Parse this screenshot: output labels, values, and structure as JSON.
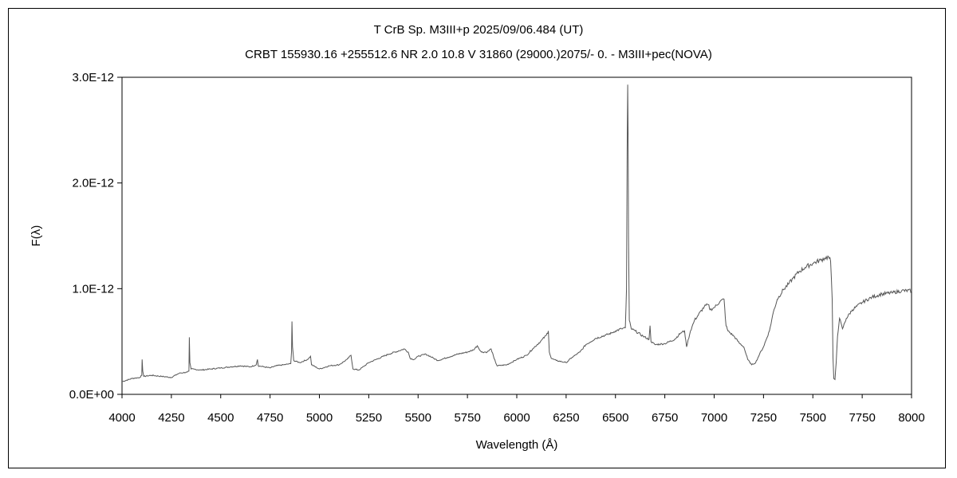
{
  "chart_data": {
    "type": "line",
    "title": "T CrB    Sp. M3III+p    2025/09/06.484 (UT)",
    "subtitle": "CRBT 155930.16 +255512.6  NR 2.0 10.8 V 31860 (29000.)2075/-  0. - M3III+pec(NOVA)",
    "xlabel": "Wavelength (Å)",
    "ylabel": "F(λ)",
    "xlim": [
      4000,
      8000
    ],
    "ylim": [
      0,
      3e-12
    ],
    "x_ticks": [
      4000,
      4250,
      4500,
      4750,
      5000,
      5250,
      5500,
      5750,
      6000,
      6250,
      6500,
      6750,
      7000,
      7250,
      7500,
      7750,
      8000
    ],
    "x_tick_labels": [
      "4000",
      "4250",
      "4500",
      "4750",
      "5000",
      "5250",
      "5500",
      "5750",
      "6000",
      "6250",
      "6500",
      "6750",
      "7000",
      "7250",
      "7500",
      "7750",
      "8000"
    ],
    "y_ticks": [
      0,
      1e-12,
      2e-12,
      3e-12
    ],
    "y_tick_labels": [
      "0.0E+00",
      "1.0E-12",
      "2.0E-12",
      "3.0E-12"
    ],
    "grid": false,
    "line_color": "#555555",
    "series": [
      {
        "values": [
          [
            4000,
            0.12
          ],
          [
            4050,
            0.15
          ],
          [
            4090,
            0.16
          ],
          [
            4100,
            0.18
          ],
          [
            4102,
            0.33
          ],
          [
            4105,
            0.22
          ],
          [
            4110,
            0.17
          ],
          [
            4150,
            0.18
          ],
          [
            4200,
            0.17
          ],
          [
            4250,
            0.16
          ],
          [
            4290,
            0.2
          ],
          [
            4330,
            0.21
          ],
          [
            4339,
            0.22
          ],
          [
            4341,
            0.54
          ],
          [
            4344,
            0.3
          ],
          [
            4350,
            0.24
          ],
          [
            4400,
            0.23
          ],
          [
            4450,
            0.24
          ],
          [
            4500,
            0.25
          ],
          [
            4550,
            0.26
          ],
          [
            4600,
            0.27
          ],
          [
            4650,
            0.26
          ],
          [
            4680,
            0.28
          ],
          [
            4686,
            0.33
          ],
          [
            4690,
            0.27
          ],
          [
            4720,
            0.26
          ],
          [
            4750,
            0.25
          ],
          [
            4780,
            0.27
          ],
          [
            4820,
            0.28
          ],
          [
            4855,
            0.29
          ],
          [
            4859,
            0.41
          ],
          [
            4861,
            0.69
          ],
          [
            4864,
            0.45
          ],
          [
            4870,
            0.32
          ],
          [
            4900,
            0.3
          ],
          [
            4940,
            0.33
          ],
          [
            4955,
            0.36
          ],
          [
            4960,
            0.28
          ],
          [
            5000,
            0.24
          ],
          [
            5050,
            0.27
          ],
          [
            5100,
            0.28
          ],
          [
            5140,
            0.33
          ],
          [
            5160,
            0.37
          ],
          [
            5170,
            0.24
          ],
          [
            5200,
            0.23
          ],
          [
            5250,
            0.3
          ],
          [
            5300,
            0.34
          ],
          [
            5350,
            0.38
          ],
          [
            5400,
            0.41
          ],
          [
            5430,
            0.43
          ],
          [
            5450,
            0.4
          ],
          [
            5460,
            0.34
          ],
          [
            5480,
            0.33
          ],
          [
            5500,
            0.36
          ],
          [
            5540,
            0.38
          ],
          [
            5580,
            0.34
          ],
          [
            5600,
            0.32
          ],
          [
            5650,
            0.35
          ],
          [
            5700,
            0.38
          ],
          [
            5750,
            0.4
          ],
          [
            5780,
            0.42
          ],
          [
            5800,
            0.46
          ],
          [
            5820,
            0.4
          ],
          [
            5850,
            0.4
          ],
          [
            5870,
            0.43
          ],
          [
            5885,
            0.34
          ],
          [
            5900,
            0.27
          ],
          [
            5950,
            0.28
          ],
          [
            6000,
            0.33
          ],
          [
            6050,
            0.37
          ],
          [
            6080,
            0.43
          ],
          [
            6120,
            0.5
          ],
          [
            6150,
            0.56
          ],
          [
            6160,
            0.6
          ],
          [
            6165,
            0.4
          ],
          [
            6175,
            0.34
          ],
          [
            6200,
            0.32
          ],
          [
            6250,
            0.3
          ],
          [
            6280,
            0.35
          ],
          [
            6320,
            0.4
          ],
          [
            6350,
            0.47
          ],
          [
            6400,
            0.53
          ],
          [
            6450,
            0.56
          ],
          [
            6480,
            0.58
          ],
          [
            6500,
            0.6
          ],
          [
            6530,
            0.62
          ],
          [
            6550,
            0.63
          ],
          [
            6556,
            1.0
          ],
          [
            6559,
            2.3
          ],
          [
            6562,
            2.93
          ],
          [
            6564,
            2.45
          ],
          [
            6566,
            1.5
          ],
          [
            6570,
            0.7
          ],
          [
            6580,
            0.62
          ],
          [
            6600,
            0.6
          ],
          [
            6640,
            0.55
          ],
          [
            6670,
            0.52
          ],
          [
            6675,
            0.65
          ],
          [
            6680,
            0.5
          ],
          [
            6700,
            0.47
          ],
          [
            6750,
            0.48
          ],
          [
            6800,
            0.52
          ],
          [
            6830,
            0.58
          ],
          [
            6850,
            0.6
          ],
          [
            6860,
            0.45
          ],
          [
            6880,
            0.6
          ],
          [
            6900,
            0.7
          ],
          [
            6950,
            0.83
          ],
          [
            6970,
            0.85
          ],
          [
            6980,
            0.8
          ],
          [
            7000,
            0.82
          ],
          [
            7030,
            0.88
          ],
          [
            7050,
            0.9
          ],
          [
            7060,
            0.65
          ],
          [
            7070,
            0.6
          ],
          [
            7100,
            0.55
          ],
          [
            7130,
            0.48
          ],
          [
            7150,
            0.45
          ],
          [
            7170,
            0.33
          ],
          [
            7190,
            0.28
          ],
          [
            7210,
            0.3
          ],
          [
            7230,
            0.38
          ],
          [
            7250,
            0.45
          ],
          [
            7280,
            0.6
          ],
          [
            7300,
            0.78
          ],
          [
            7320,
            0.9
          ],
          [
            7350,
            0.99
          ],
          [
            7380,
            1.05
          ],
          [
            7400,
            1.1
          ],
          [
            7430,
            1.16
          ],
          [
            7460,
            1.2
          ],
          [
            7500,
            1.24
          ],
          [
            7540,
            1.27
          ],
          [
            7560,
            1.29
          ],
          [
            7580,
            1.3
          ],
          [
            7590,
            1.26
          ],
          [
            7598,
            0.9
          ],
          [
            7602,
            0.35
          ],
          [
            7606,
            0.15
          ],
          [
            7612,
            0.14
          ],
          [
            7618,
            0.3
          ],
          [
            7625,
            0.55
          ],
          [
            7635,
            0.72
          ],
          [
            7650,
            0.62
          ],
          [
            7670,
            0.72
          ],
          [
            7700,
            0.8
          ],
          [
            7750,
            0.87
          ],
          [
            7800,
            0.92
          ],
          [
            7850,
            0.95
          ],
          [
            7900,
            0.96
          ],
          [
            7950,
            0.98
          ],
          [
            8000,
            0.98
          ]
        ]
      }
    ]
  }
}
